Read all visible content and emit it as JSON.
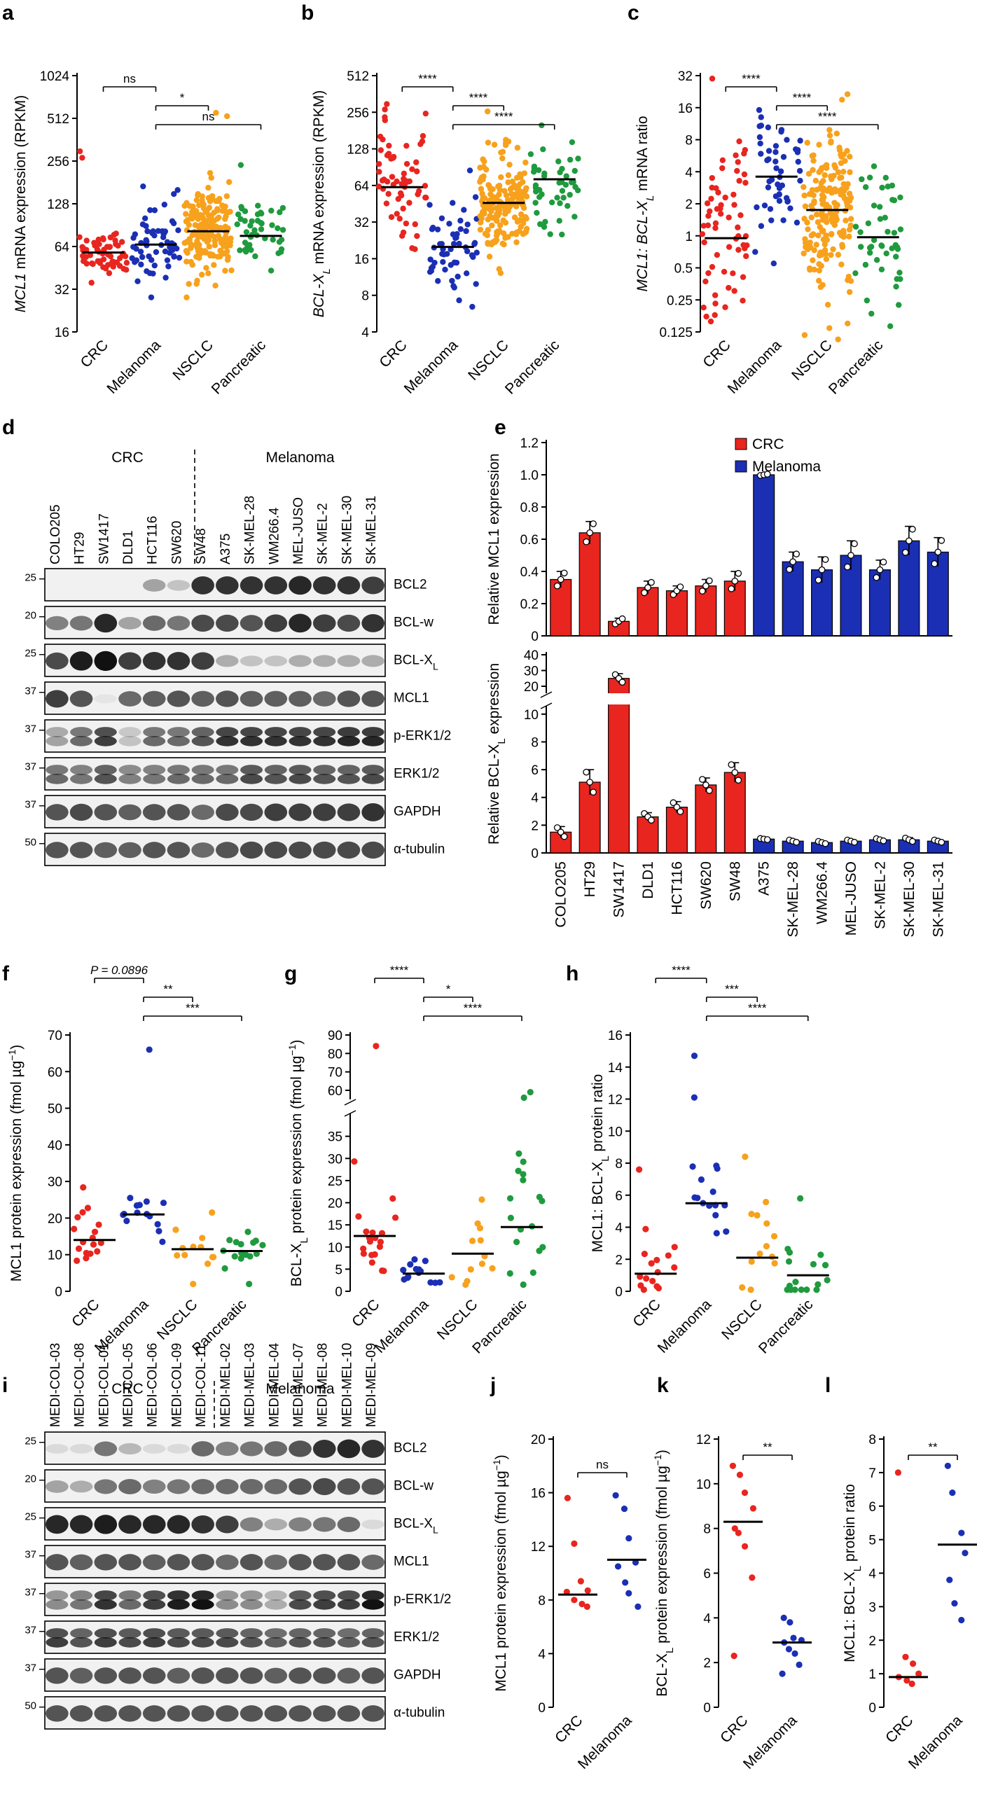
{
  "colors": {
    "red": "#e8251f",
    "blue": "#1b2fb4",
    "orange": "#f7a11c",
    "green": "#1f9a3e",
    "black": "#000000",
    "bar_red": "#e8251f",
    "bar_blue": "#1b2fb4"
  },
  "panels": {
    "a": "a",
    "b": "b",
    "c": "c",
    "d": "d",
    "e": "e",
    "f": "f",
    "g": "g",
    "h": "h",
    "i": "i",
    "j": "j",
    "k": "k",
    "l": "l"
  },
  "blot_d": {
    "group_left": "CRC",
    "group_right": "Melanoma",
    "lanes": [
      "COLO205",
      "HT29",
      "SW1417",
      "DLD1",
      "HCT116",
      "SW620",
      "SW48",
      "A375",
      "SK-MEL-28",
      "WM266.4",
      "MEL-JUSO",
      "SK-MEL-2",
      "SK-MEL-30",
      "SK-MEL-31"
    ],
    "rows": [
      {
        "label": "BCL2",
        "mw": "25"
      },
      {
        "label": "BCL-w",
        "mw": "20"
      },
      {
        "label": "BCL-X",
        "sub": "L",
        "mw": "25"
      },
      {
        "label": "MCL1",
        "mw": "37"
      },
      {
        "label": "p-ERK1/2",
        "mw": "37"
      },
      {
        "label": "ERK1/2",
        "mw": "37"
      },
      {
        "label": "GAPDH",
        "mw": "37"
      },
      {
        "label": "α-tubulin",
        "mw": "50"
      }
    ]
  },
  "blot_i": {
    "group_left": "CRC",
    "group_right": "Melanoma",
    "lanes": [
      "MEDI-COL-03",
      "MEDI-COL-08",
      "MEDI-COL-01",
      "MEDI-COL-05",
      "MEDI-COL-06",
      "MEDI-COL-09",
      "MEDI-COL-11",
      "MEDI-MEL-02",
      "MEDI-MEL-03",
      "MEDI-MEL-04",
      "MEDI-MEL-07",
      "MEDI-MEL-08",
      "MEDI-MEL-10",
      "MEDI-MEL-09"
    ],
    "rows": [
      {
        "label": "BCL2",
        "mw": "25"
      },
      {
        "label": "BCL-w",
        "mw": "20"
      },
      {
        "label": "BCL-X",
        "sub": "L",
        "mw": "25"
      },
      {
        "label": "MCL1",
        "mw": "37"
      },
      {
        "label": "p-ERK1/2",
        "mw": "37"
      },
      {
        "label": "ERK1/2",
        "mw": "37"
      },
      {
        "label": "GAPDH",
        "mw": "37"
      },
      {
        "label": "α-tubulin",
        "mw": "50"
      }
    ]
  },
  "chart_data": [
    {
      "id": "a",
      "type": "scatter",
      "scale": "log2",
      "ylabel_italic": "MCL1",
      "ylabel_rest": " mRNA expression (RPKM)",
      "ylim": [
        16,
        1024
      ],
      "yticks": [
        "16",
        "32",
        "64",
        "128",
        "256",
        "512",
        "1024"
      ],
      "categories": [
        "CRC",
        "Melanoma",
        "NSCLC",
        "Pancreatic"
      ],
      "medians": [
        58,
        66,
        82,
        76
      ],
      "sig": [
        {
          "from": 0,
          "to": 1,
          "label": "ns",
          "level": 0
        },
        {
          "from": 1,
          "to": 2,
          "label": "*",
          "level": 1
        },
        {
          "from": 1,
          "to": 3,
          "label": "ns",
          "level": 2
        }
      ]
    },
    {
      "id": "b",
      "type": "scatter",
      "scale": "log2",
      "ylabel_italic": "BCL-X",
      "ylabel_sub": "L",
      "ylabel_rest": " mRNA expression (RPKM)",
      "ylim": [
        4,
        512
      ],
      "yticks": [
        "4",
        "8",
        "16",
        "32",
        "64",
        "128",
        "256",
        "512"
      ],
      "categories": [
        "CRC",
        "Melanoma",
        "NSCLC",
        "Pancreatic"
      ],
      "medians": [
        62,
        20,
        46,
        72
      ],
      "sig": [
        {
          "from": 0,
          "to": 1,
          "label": "****",
          "level": 0
        },
        {
          "from": 1,
          "to": 2,
          "label": "****",
          "level": 1
        },
        {
          "from": 1,
          "to": 3,
          "label": "****",
          "level": 2
        }
      ]
    },
    {
      "id": "c",
      "type": "scatter",
      "scale": "log2",
      "ylabel_italic": "MCL1: BCL-X",
      "ylabel_sub": "L",
      "ylabel_rest": " mRNA ratio",
      "ylim": [
        0.125,
        32
      ],
      "yticks": [
        "0.125",
        "0.25",
        "0.5",
        "1",
        "2",
        "4",
        "8",
        "16",
        "32"
      ],
      "categories": [
        "CRC",
        "Melanoma",
        "NSCLC",
        "Pancreatic"
      ],
      "medians": [
        0.95,
        3.6,
        1.75,
        0.97
      ],
      "sig": [
        {
          "from": 0,
          "to": 1,
          "label": "****",
          "level": 0
        },
        {
          "from": 1,
          "to": 2,
          "label": "****",
          "level": 1
        },
        {
          "from": 1,
          "to": 3,
          "label": "****",
          "level": 2
        }
      ]
    },
    {
      "id": "e1",
      "type": "bar",
      "ylabel": "Relative MCL1 expression",
      "ylim": [
        0,
        1.2
      ],
      "yticks": [
        "0",
        "0.2",
        "0.4",
        "0.6",
        "0.8",
        "1.0",
        "1.2"
      ],
      "values": [
        0.35,
        0.64,
        0.09,
        0.3,
        0.28,
        0.31,
        0.34,
        1.0,
        0.46,
        0.41,
        0.5,
        0.41,
        0.59,
        0.52
      ],
      "errors": [
        0.05,
        0.07,
        0.02,
        0.04,
        0.03,
        0.04,
        0.06,
        0.005,
        0.06,
        0.08,
        0.09,
        0.06,
        0.09,
        0.09
      ],
      "legend": [
        "CRC",
        "Melanoma"
      ]
    },
    {
      "id": "e2",
      "type": "bar",
      "ylabel_pre": "Relative BCL-X",
      "ylabel_sub": "L",
      "ylabel_rest": " expression",
      "yticks_low": [
        "0",
        "2",
        "4",
        "6",
        "8",
        "10"
      ],
      "yticks_high": [
        "20",
        "30",
        "40"
      ],
      "categories": [
        "COLO205",
        "HT29",
        "SW1417",
        "DLD1",
        "HCT116",
        "SW620",
        "SW48",
        "A375",
        "SK-MEL-28",
        "WM266.4",
        "MEL-JUSO",
        "SK-MEL-2",
        "SK-MEL-30",
        "SK-MEL-31"
      ],
      "values": [
        1.5,
        5.1,
        25,
        2.6,
        3.3,
        4.9,
        5.8,
        1.0,
        0.85,
        0.75,
        0.85,
        0.95,
        0.95,
        0.85
      ],
      "errors": [
        0.4,
        0.9,
        3,
        0.3,
        0.4,
        0.5,
        0.7,
        0.05,
        0.1,
        0.1,
        0.1,
        0.1,
        0.15,
        0.1
      ]
    },
    {
      "id": "f",
      "type": "scatter",
      "ylabel": "MCL1 protein expression (fmol µg",
      "ylabel_sup": "−1",
      "ylabel_close": ")",
      "ylim": [
        0,
        70
      ],
      "yticks": [
        "0",
        "10",
        "20",
        "30",
        "40",
        "50",
        "60",
        "70"
      ],
      "categories": [
        "CRC",
        "Melanoma",
        "NSCLC",
        "Pancreatic"
      ],
      "medians": [
        14,
        21,
        11.5,
        11
      ],
      "sig": [
        {
          "from": 0,
          "to": 1,
          "label": "P = 0.0896",
          "level": 0
        },
        {
          "from": 1,
          "to": 2,
          "label": "**",
          "level": 1
        },
        {
          "from": 1,
          "to": 3,
          "label": "***",
          "level": 2
        }
      ]
    },
    {
      "id": "g",
      "type": "scatter",
      "ylabel_pre": "BCL-X",
      "ylabel_sub": "L",
      "ylabel_rest": " protein expression (fmol µg",
      "ylabel_sup": "−1",
      "ylabel_close": ")",
      "yticks_low": [
        "0",
        "5",
        "10",
        "15",
        "20",
        "25",
        "30",
        "35"
      ],
      "yticks_high": [
        "60",
        "70",
        "80",
        "90"
      ],
      "categories": [
        "CRC",
        "Melanoma",
        "NSCLC",
        "Pancreatic"
      ],
      "medians": [
        12.5,
        4,
        8.5,
        14.5
      ],
      "sig": [
        {
          "from": 0,
          "to": 1,
          "label": "****",
          "level": 0
        },
        {
          "from": 1,
          "to": 2,
          "label": "*",
          "level": 1
        },
        {
          "from": 1,
          "to": 3,
          "label": "****",
          "level": 2
        }
      ]
    },
    {
      "id": "h",
      "type": "scatter",
      "ylabel_pre": "MCL1: BCL-X",
      "ylabel_sub": "L",
      "ylabel_rest": " protein ratio",
      "ylim": [
        0,
        16
      ],
      "yticks": [
        "0",
        "2",
        "4",
        "6",
        "8",
        "10",
        "12",
        "14",
        "16"
      ],
      "categories": [
        "CRC",
        "Melanoma",
        "NSCLC",
        "Pancreatic"
      ],
      "medians": [
        1.1,
        5.5,
        2.1,
        1.0
      ],
      "sig": [
        {
          "from": 0,
          "to": 1,
          "label": "****",
          "level": 0
        },
        {
          "from": 1,
          "to": 2,
          "label": "***",
          "level": 1
        },
        {
          "from": 1,
          "to": 3,
          "label": "****",
          "level": 2
        }
      ]
    },
    {
      "id": "j",
      "type": "scatter",
      "ylabel": "MCL1 protein expression (fmol µg",
      "ylabel_sup": "−1",
      "ylabel_close": ")",
      "ylim": [
        0,
        20
      ],
      "yticks": [
        "0",
        "4",
        "8",
        "12",
        "16",
        "20"
      ],
      "categories": [
        "CRC",
        "Melanoma"
      ],
      "medians": [
        8.4,
        11
      ],
      "sig": [
        {
          "from": 0,
          "to": 1,
          "label": "ns",
          "level": 0
        }
      ],
      "points": [
        [
          15.6,
          12.2,
          9.4,
          8.7,
          8.6,
          8.0,
          7.7,
          7.5
        ],
        [
          15.8,
          14.8,
          12.6,
          10.8,
          10.5,
          9.3,
          8.5,
          7.5
        ]
      ]
    },
    {
      "id": "k",
      "type": "scatter",
      "ylabel_pre": "BCL-X",
      "ylabel_sub": "L",
      "ylabel_rest": " protein expression (fmol µg",
      "ylabel_sup": "−1",
      "ylabel_close": ")",
      "ylim": [
        0,
        12
      ],
      "yticks": [
        "0",
        "2",
        "4",
        "6",
        "8",
        "10",
        "12"
      ],
      "categories": [
        "CRC",
        "Melanoma"
      ],
      "medians": [
        8.3,
        2.9
      ],
      "sig": [
        {
          "from": 0,
          "to": 1,
          "label": "**",
          "level": 0
        }
      ],
      "points": [
        [
          10.8,
          10.4,
          9.6,
          8.9,
          8.0,
          7.8,
          7.2,
          5.8,
          2.3
        ],
        [
          4.0,
          3.8,
          3.1,
          3.0,
          2.9,
          2.6,
          2.4,
          1.9,
          1.5
        ]
      ]
    },
    {
      "id": "l",
      "type": "scatter",
      "ylabel_pre": "MCL1: BCL-X",
      "ylabel_sub": "L",
      "ylabel_rest": " protein ratio",
      "ylim": [
        0,
        8
      ],
      "yticks": [
        "0",
        "1",
        "2",
        "3",
        "4",
        "5",
        "6",
        "7",
        "8"
      ],
      "categories": [
        "CRC",
        "Melanoma"
      ],
      "medians": [
        0.9,
        4.85
      ],
      "sig": [
        {
          "from": 0,
          "to": 1,
          "label": "**",
          "level": 0
        }
      ],
      "points": [
        [
          7.0,
          1.5,
          1.3,
          1.0,
          0.9,
          0.8,
          0.7
        ],
        [
          7.2,
          6.4,
          5.2,
          4.6,
          3.8,
          3.1,
          2.6
        ]
      ]
    }
  ]
}
